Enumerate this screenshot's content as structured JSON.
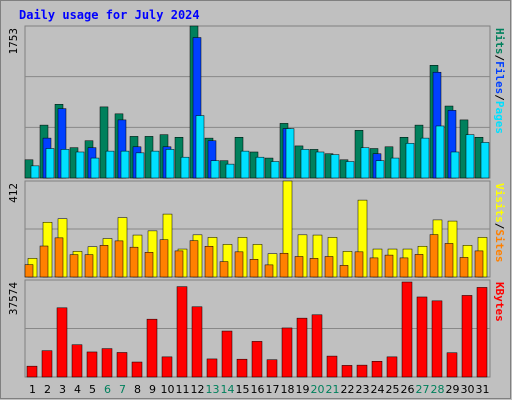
{
  "title": "Daily usage for July 2024",
  "colors": {
    "background": "#c0c0c0",
    "frame_light": "#ffffff",
    "frame_dark": "#808080",
    "grid": "#888888",
    "title": "#0000ff",
    "hits": "#00805c",
    "files": "#0040ff",
    "pages": "#00e0ff",
    "visits": "#ffff00",
    "sites": "#ff8000",
    "kbytes": "#ff0000",
    "weekend": "#00805c",
    "weekday": "#000000"
  },
  "chart_data": [
    {
      "type": "bar",
      "ylabel_max": "1753",
      "ylim": [
        0,
        1753
      ],
      "legend_parts": [
        {
          "text": "Pages",
          "color": "#00e0ff"
        },
        {
          "text": "/",
          "color": "#000000"
        },
        {
          "text": "Files",
          "color": "#0040ff"
        },
        {
          "text": "/",
          "color": "#000000"
        },
        {
          "text": "Hits",
          "color": "#00805c"
        }
      ],
      "categories": [
        "1",
        "2",
        "3",
        "4",
        "5",
        "6",
        "7",
        "8",
        "9",
        "10",
        "11",
        "12",
        "13",
        "14",
        "15",
        "16",
        "17",
        "18",
        "19",
        "20",
        "21",
        "22",
        "23",
        "24",
        "25",
        "26",
        "27",
        "28",
        "29",
        "30",
        "31"
      ],
      "series": [
        {
          "name": "Hits",
          "color": "#00805c",
          "values": [
            210,
            610,
            850,
            350,
            430,
            820,
            740,
            480,
            480,
            500,
            470,
            1753,
            460,
            200,
            470,
            300,
            230,
            630,
            370,
            330,
            280,
            210,
            550,
            340,
            360,
            470,
            610,
            1300,
            830,
            670,
            470
          ]
        },
        {
          "name": "Files",
          "color": "#0040ff",
          "values": [
            0,
            460,
            800,
            0,
            350,
            0,
            670,
            360,
            0,
            360,
            0,
            1620,
            430,
            0,
            0,
            0,
            0,
            570,
            0,
            0,
            0,
            0,
            0,
            280,
            0,
            0,
            0,
            1220,
            780,
            0,
            0
          ]
        },
        {
          "name": "Pages",
          "color": "#00e0ff",
          "values": [
            140,
            340,
            330,
            300,
            230,
            310,
            310,
            290,
            310,
            330,
            240,
            720,
            200,
            160,
            310,
            240,
            190,
            570,
            330,
            300,
            270,
            190,
            350,
            200,
            230,
            400,
            460,
            600,
            300,
            500,
            410
          ]
        }
      ]
    },
    {
      "type": "bar",
      "ylabel_max": "412",
      "ylim": [
        0,
        412
      ],
      "legend_parts": [
        {
          "text": "Sites",
          "color": "#ff8000"
        },
        {
          "text": "/",
          "color": "#000000"
        },
        {
          "text": "Visits",
          "color": "#ffff00"
        }
      ],
      "categories": [
        "1",
        "2",
        "3",
        "4",
        "5",
        "6",
        "7",
        "8",
        "9",
        "10",
        "11",
        "12",
        "13",
        "14",
        "15",
        "16",
        "17",
        "18",
        "19",
        "20",
        "21",
        "22",
        "23",
        "24",
        "25",
        "26",
        "27",
        "28",
        "29",
        "30",
        "31"
      ],
      "series": [
        {
          "name": "Visits",
          "color": "#ffff00",
          "values": [
            80,
            235,
            250,
            110,
            130,
            165,
            255,
            180,
            198,
            270,
            120,
            181,
            170,
            140,
            170,
            140,
            100,
            412,
            181,
            180,
            170,
            110,
            330,
            120,
            120,
            120,
            132,
            245,
            240,
            136,
            170
          ]
        },
        {
          "name": "Sites",
          "color": "#ff8000",
          "values": [
            53,
            133,
            168,
            96,
            96,
            136,
            155,
            128,
            106,
            160,
            112,
            156,
            132,
            66,
            108,
            76,
            52,
            102,
            88,
            80,
            88,
            50,
            108,
            82,
            94,
            82,
            97,
            182,
            144,
            84,
            112
          ]
        }
      ]
    },
    {
      "type": "bar",
      "ylabel_max": "37574",
      "ylim": [
        0,
        37574
      ],
      "legend_parts": [
        {
          "text": "KBytes",
          "color": "#ff0000"
        }
      ],
      "categories": [
        "1",
        "2",
        "3",
        "4",
        "5",
        "6",
        "7",
        "8",
        "9",
        "10",
        "11",
        "12",
        "13",
        "14",
        "15",
        "16",
        "17",
        "18",
        "19",
        "20",
        "21",
        "22",
        "23",
        "24",
        "25",
        "26",
        "27",
        "28",
        "29",
        "30",
        "31"
      ],
      "series": [
        {
          "name": "KBytes",
          "color": "#ff0000",
          "values": [
            4200,
            10200,
            26800,
            12500,
            9700,
            11000,
            9500,
            5800,
            22400,
            7800,
            35000,
            27200,
            7000,
            17800,
            6900,
            13800,
            6700,
            19000,
            22800,
            24100,
            8100,
            4500,
            4600,
            6100,
            7800,
            36800,
            31000,
            29500,
            9400,
            31600,
            34700
          ]
        }
      ]
    }
  ]
}
